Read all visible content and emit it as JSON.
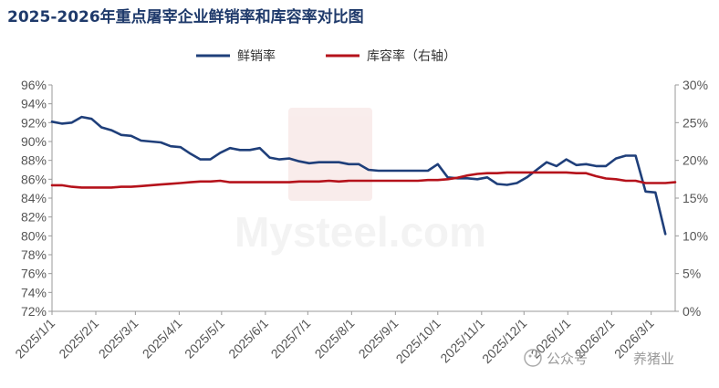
{
  "chart_data": {
    "type": "line",
    "title": "2025-2026年重点屠宰企业鲜销率和库容率对比图",
    "x_tick_labels": [
      "2025/1/1",
      "2025/2/1",
      "2025/3/1",
      "2025/4/1",
      "2025/5/1",
      "2025/6/1",
      "2025/7/1",
      "2025/8/1",
      "2025/9/1",
      "2025/10/1",
      "2025/11/1",
      "2025/12/1",
      "2026/1/1",
      "2026/2/1",
      "2026/3/1"
    ],
    "y_left": {
      "label": "",
      "ticks": [
        "72%",
        "74%",
        "76%",
        "78%",
        "80%",
        "82%",
        "84%",
        "86%",
        "88%",
        "90%",
        "92%",
        "94%",
        "96%"
      ],
      "ylim": [
        72,
        96
      ]
    },
    "y_right": {
      "label": "",
      "ticks": [
        "0%",
        "5%",
        "10%",
        "15%",
        "20%",
        "25%",
        "30%"
      ],
      "ylim": [
        0,
        30
      ]
    },
    "grid": false,
    "legend_position": "top-center",
    "series": [
      {
        "name": "鲜销率",
        "axis": "left",
        "color": "#1f3f7a",
        "x": [
          "2025/1/1",
          "2025/1/8",
          "2025/1/15",
          "2025/1/22",
          "2025/1/29",
          "2025/2/5",
          "2025/2/12",
          "2025/2/19",
          "2025/2/26",
          "2025/3/5",
          "2025/3/12",
          "2025/3/19",
          "2025/3/26",
          "2025/4/2",
          "2025/4/9",
          "2025/4/16",
          "2025/4/23",
          "2025/4/30",
          "2025/5/7",
          "2025/5/14",
          "2025/5/21",
          "2025/5/28",
          "2025/6/4",
          "2025/6/11",
          "2025/6/18",
          "2025/6/25",
          "2025/7/2",
          "2025/7/9",
          "2025/7/16",
          "2025/7/23",
          "2025/7/30",
          "2025/8/6",
          "2025/8/13",
          "2025/8/20",
          "2025/8/27",
          "2025/9/3",
          "2025/9/10",
          "2025/9/17",
          "2025/9/24",
          "2025/10/1",
          "2025/10/8",
          "2025/10/15",
          "2025/10/22",
          "2025/10/29",
          "2025/11/5",
          "2025/11/12",
          "2025/11/19",
          "2025/11/26",
          "2025/12/3",
          "2025/12/10",
          "2025/12/17",
          "2025/12/24",
          "2025/12/31",
          "2026/1/7",
          "2026/1/14",
          "2026/1/21",
          "2026/1/28",
          "2026/2/4",
          "2026/2/11",
          "2026/2/18",
          "2026/2/25",
          "2026/3/4",
          "2026/3/11"
        ],
        "values": [
          92.1,
          91.9,
          92.0,
          92.6,
          92.4,
          91.5,
          91.2,
          90.7,
          90.6,
          90.1,
          90.0,
          89.9,
          89.5,
          89.4,
          88.7,
          88.1,
          88.1,
          88.8,
          89.3,
          89.1,
          89.1,
          89.3,
          88.3,
          88.1,
          88.2,
          87.9,
          87.7,
          87.8,
          87.8,
          87.8,
          87.6,
          87.6,
          87.0,
          86.9,
          86.9,
          86.9,
          86.9,
          86.9,
          86.9,
          87.6,
          86.2,
          86.1,
          86.1,
          86.0,
          86.2,
          85.5,
          85.4,
          85.6,
          86.2,
          87.0,
          87.8,
          87.4,
          88.1,
          87.5,
          87.6,
          87.4,
          87.4,
          88.2,
          88.5,
          88.5,
          84.7,
          84.6,
          80.2
        ]
      },
      {
        "name": "库容率（右轴）",
        "axis": "right",
        "color": "#b5121b",
        "x": [
          "2025/1/1",
          "2025/1/8",
          "2025/1/15",
          "2025/1/22",
          "2025/1/29",
          "2025/2/5",
          "2025/2/12",
          "2025/2/19",
          "2025/2/26",
          "2025/3/5",
          "2025/3/12",
          "2025/3/19",
          "2025/3/26",
          "2025/4/2",
          "2025/4/9",
          "2025/4/16",
          "2025/4/23",
          "2025/4/30",
          "2025/5/7",
          "2025/5/14",
          "2025/5/21",
          "2025/5/28",
          "2025/6/4",
          "2025/6/11",
          "2025/6/18",
          "2025/6/25",
          "2025/7/2",
          "2025/7/9",
          "2025/7/16",
          "2025/7/23",
          "2025/7/30",
          "2025/8/6",
          "2025/8/13",
          "2025/8/20",
          "2025/8/27",
          "2025/9/3",
          "2025/9/10",
          "2025/9/17",
          "2025/9/24",
          "2025/10/1",
          "2025/10/8",
          "2025/10/15",
          "2025/10/22",
          "2025/10/29",
          "2025/11/5",
          "2025/11/12",
          "2025/11/19",
          "2025/11/26",
          "2025/12/3",
          "2025/12/10",
          "2025/12/17",
          "2025/12/24",
          "2025/12/31",
          "2026/1/7",
          "2026/1/14",
          "2026/1/21",
          "2026/1/28",
          "2026/2/4",
          "2026/2/11",
          "2026/2/18",
          "2026/2/25",
          "2026/3/4",
          "2026/3/11",
          "2026/3/18"
        ],
        "values": [
          16.7,
          16.7,
          16.5,
          16.4,
          16.4,
          16.4,
          16.4,
          16.5,
          16.5,
          16.6,
          16.7,
          16.8,
          16.9,
          17.0,
          17.1,
          17.2,
          17.2,
          17.3,
          17.1,
          17.1,
          17.1,
          17.1,
          17.1,
          17.1,
          17.1,
          17.2,
          17.2,
          17.2,
          17.3,
          17.2,
          17.3,
          17.3,
          17.3,
          17.3,
          17.3,
          17.3,
          17.3,
          17.3,
          17.4,
          17.4,
          17.5,
          17.7,
          18.0,
          18.2,
          18.3,
          18.3,
          18.4,
          18.4,
          18.4,
          18.4,
          18.4,
          18.4,
          18.4,
          18.3,
          18.3,
          17.9,
          17.6,
          17.5,
          17.3,
          17.3,
          17.0,
          17.0,
          17.0,
          17.1
        ]
      }
    ],
    "watermark": "Mysteel.com",
    "footer": {
      "label": "公众号",
      "account": "养猪业"
    }
  }
}
